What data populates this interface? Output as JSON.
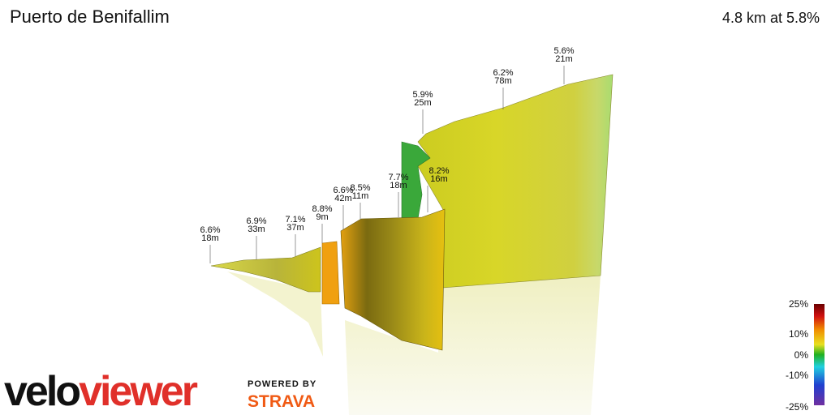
{
  "header": {
    "title": "Puerto de Benifallim",
    "summary": "4.8 km at 5.8%"
  },
  "annotations": [
    {
      "grade": "6.6%",
      "length": "18m"
    },
    {
      "grade": "6.9%",
      "length": "33m"
    },
    {
      "grade": "7.1%",
      "length": "37m"
    },
    {
      "grade": "8.8%",
      "length": "9m"
    },
    {
      "grade": "6.6%",
      "length": "42m"
    },
    {
      "grade": "8.5%",
      "length": "11m"
    },
    {
      "grade": "7.7%",
      "length": "18m"
    },
    {
      "grade": "8.2%",
      "length": "16m"
    },
    {
      "grade": "5.9%",
      "length": "25m"
    },
    {
      "grade": "6.2%",
      "length": "78m"
    },
    {
      "grade": "5.6%",
      "length": "21m"
    }
  ],
  "legend": {
    "labels": [
      "25%",
      "10%",
      "0%",
      "-10%",
      "-25%"
    ]
  },
  "branding": {
    "logo_part1": "velo",
    "logo_part2": "viewer",
    "powered_by": "POWERED BY",
    "partner": "STRAVA"
  }
}
